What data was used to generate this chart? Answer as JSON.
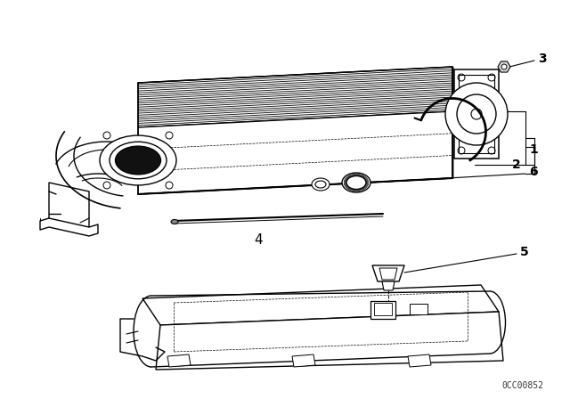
{
  "bg_color": "#ffffff",
  "line_color": "#000000",
  "watermark": "0CC00852",
  "fig_w": 6.4,
  "fig_h": 4.48,
  "dpi": 100
}
